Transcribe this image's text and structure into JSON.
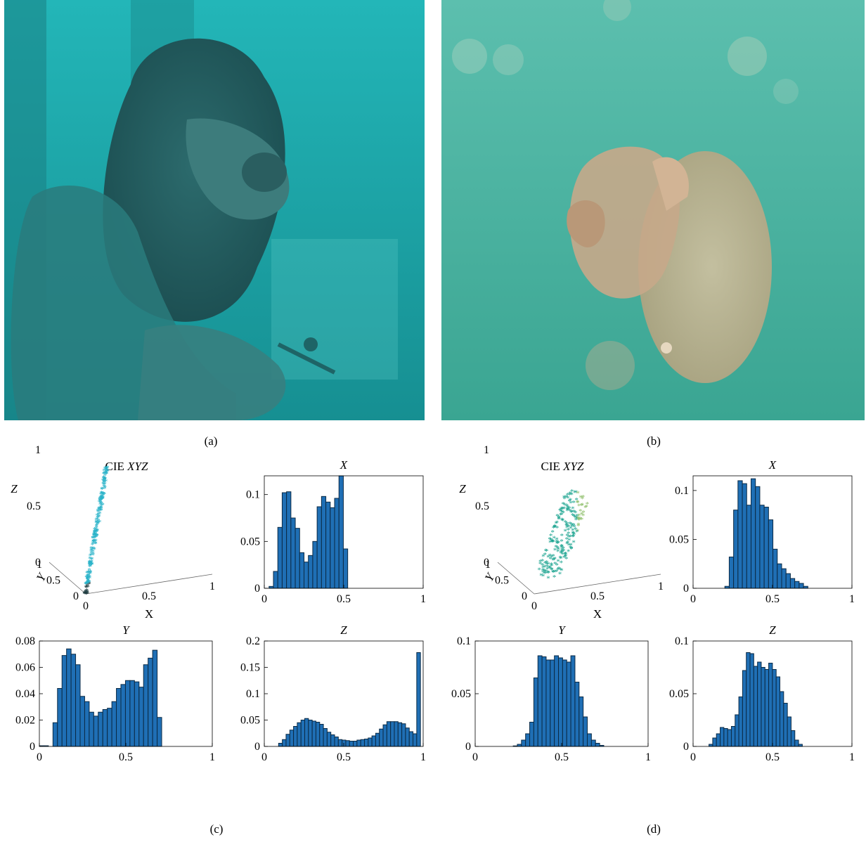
{
  "panels": {
    "a": "(a)",
    "b": "(b)",
    "c": "(c)",
    "d": "(d)"
  },
  "photos": {
    "a": {
      "subject": "underwater lion statue",
      "tint": "#1fa3a3"
    },
    "b": {
      "subject": "jellyfish underwater",
      "tint": "#4fb5a5"
    }
  },
  "colors": {
    "bar_fill": "#1f6fb5",
    "bar_edge": "#0b2a45",
    "axis": "#000000",
    "scatter_c": "#2ab3c9",
    "scatter_d_start": "#1aa38f",
    "scatter_d_end": "#d6c44a"
  },
  "chart_data": [
    {
      "id": "c-scatter",
      "type": "scatter",
      "title_prefix": "CIE ",
      "title_italic": "XYZ",
      "xlabel": "X",
      "ylabel": "Y",
      "zlabel": "Z",
      "xticks": [
        "0",
        "0.5",
        "1"
      ],
      "yticks": [
        "0",
        "0.5",
        "1"
      ],
      "zticks": [
        "0",
        "0.5",
        "1"
      ],
      "cluster": {
        "x": [
          0.0,
          0.25
        ],
        "y": [
          0.0,
          0.3
        ],
        "z": [
          0.0,
          1.0
        ]
      }
    },
    {
      "id": "c-x",
      "type": "bar",
      "title": "X",
      "xlim": [
        0,
        1
      ],
      "ylim": [
        0,
        0.12
      ],
      "xticks": [
        "0",
        "0.5",
        "1"
      ],
      "yticks": [
        "0",
        "0.05",
        "0.1"
      ],
      "ytick_values": [
        0,
        0.05,
        0.1
      ],
      "bin_start": 0.03,
      "bin_width": 0.0275,
      "values": [
        0.002,
        0.018,
        0.065,
        0.102,
        0.103,
        0.075,
        0.064,
        0.038,
        0.028,
        0.035,
        0.05,
        0.087,
        0.098,
        0.092,
        0.086,
        0.096,
        0.12,
        0.042
      ]
    },
    {
      "id": "c-y",
      "type": "bar",
      "title": "Y",
      "xlim": [
        0,
        1
      ],
      "ylim": [
        0,
        0.08
      ],
      "xticks": [
        "0",
        "0.5",
        "1"
      ],
      "yticks": [
        "0",
        "0.02",
        "0.04",
        "0.06",
        "0.08"
      ],
      "ytick_values": [
        0,
        0.02,
        0.04,
        0.06,
        0.08
      ],
      "bin_start": 0.0,
      "bin_width": 0.0262,
      "values": [
        0.0005,
        0.0005,
        0.0,
        0.018,
        0.044,
        0.069,
        0.074,
        0.07,
        0.062,
        0.038,
        0.034,
        0.026,
        0.023,
        0.026,
        0.028,
        0.029,
        0.034,
        0.044,
        0.047,
        0.05,
        0.05,
        0.049,
        0.045,
        0.062,
        0.067,
        0.073,
        0.022
      ]
    },
    {
      "id": "c-z",
      "type": "bar",
      "title": "Z",
      "xlim": [
        0,
        1
      ],
      "ylim": [
        0,
        0.2
      ],
      "xticks": [
        "0",
        "0.5",
        "1"
      ],
      "yticks": [
        "0",
        "0.05",
        "0.1",
        "0.15",
        "0.2"
      ],
      "ytick_values": [
        0,
        0.05,
        0.1,
        0.15,
        0.2
      ],
      "bin_start": 0.09,
      "bin_width": 0.0235,
      "values": [
        0.006,
        0.013,
        0.023,
        0.031,
        0.038,
        0.045,
        0.05,
        0.053,
        0.05,
        0.048,
        0.046,
        0.042,
        0.034,
        0.027,
        0.022,
        0.018,
        0.013,
        0.012,
        0.011,
        0.01,
        0.01,
        0.012,
        0.013,
        0.014,
        0.016,
        0.02,
        0.025,
        0.033,
        0.041,
        0.047,
        0.047,
        0.047,
        0.045,
        0.043,
        0.035,
        0.028,
        0.024,
        0.178
      ]
    },
    {
      "id": "d-scatter",
      "type": "scatter",
      "title_prefix": "CIE ",
      "title_italic": "XYZ",
      "xlabel": "X",
      "ylabel": "Y",
      "zlabel": "Z",
      "xticks": [
        "0",
        "0.5",
        "1"
      ],
      "yticks": [
        "0",
        "0.5",
        "1"
      ],
      "zticks": [
        "0",
        "0.5",
        "1"
      ],
      "cluster": {
        "x": [
          0.1,
          0.6
        ],
        "y": [
          0.3,
          0.8
        ],
        "z": [
          0.0,
          0.6
        ]
      }
    },
    {
      "id": "d-x",
      "type": "bar",
      "title": "X",
      "xlim": [
        0,
        1
      ],
      "ylim": [
        0,
        0.115
      ],
      "xticks": [
        "0",
        "0.5",
        "1"
      ],
      "yticks": [
        "0",
        "0.05",
        "0.1"
      ],
      "ytick_values": [
        0,
        0.05,
        0.1
      ],
      "bin_start": 0.2,
      "bin_width": 0.0275,
      "values": [
        0.002,
        0.032,
        0.08,
        0.11,
        0.107,
        0.085,
        0.112,
        0.104,
        0.085,
        0.083,
        0.07,
        0.04,
        0.025,
        0.02,
        0.015,
        0.01,
        0.007,
        0.005,
        0.002
      ]
    },
    {
      "id": "d-y",
      "type": "bar",
      "title": "Y",
      "xlim": [
        0,
        1
      ],
      "ylim": [
        0,
        0.1
      ],
      "xticks": [
        "0",
        "0.5",
        "1"
      ],
      "yticks": [
        "0",
        "0.05",
        "0.1"
      ],
      "ytick_values": [
        0,
        0.05,
        0.1
      ],
      "bin_start": 0.22,
      "bin_width": 0.0238,
      "values": [
        0.0005,
        0.002,
        0.006,
        0.012,
        0.023,
        0.065,
        0.086,
        0.085,
        0.082,
        0.082,
        0.086,
        0.084,
        0.082,
        0.08,
        0.086,
        0.061,
        0.047,
        0.028,
        0.012,
        0.006,
        0.003,
        0.001
      ]
    },
    {
      "id": "d-z",
      "type": "bar",
      "title": "Z",
      "xlim": [
        0,
        1
      ],
      "ylim": [
        0,
        0.1
      ],
      "xticks": [
        "0",
        "0.5",
        "1"
      ],
      "yticks": [
        "0",
        "0.05",
        "0.1"
      ],
      "ytick_values": [
        0,
        0.05,
        0.1
      ],
      "bin_start": 0.1,
      "bin_width": 0.0235,
      "values": [
        0.002,
        0.008,
        0.012,
        0.018,
        0.017,
        0.016,
        0.019,
        0.03,
        0.047,
        0.072,
        0.089,
        0.088,
        0.076,
        0.08,
        0.075,
        0.073,
        0.079,
        0.073,
        0.066,
        0.052,
        0.041,
        0.028,
        0.015,
        0.006,
        0.002
      ]
    }
  ]
}
